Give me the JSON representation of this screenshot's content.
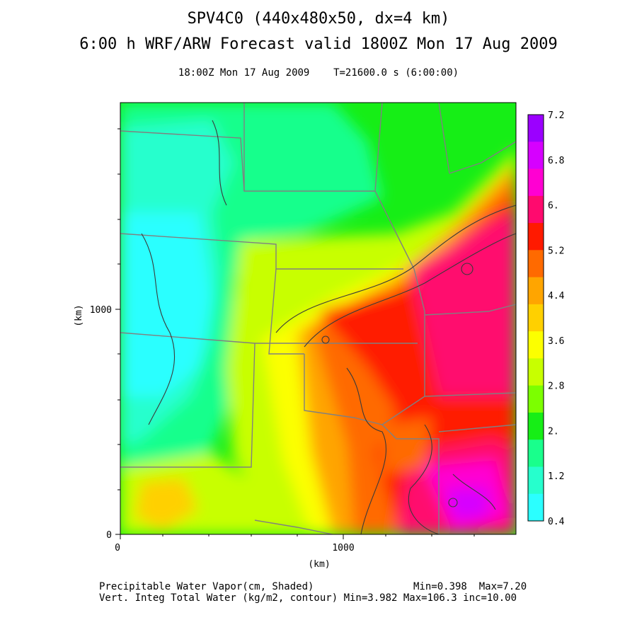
{
  "title_line1": "SPV4C0 (440x480x50, dx=4 km)",
  "title_line2": "6:00 h WRF/ARW Forecast valid 1800Z Mon 17 Aug 2009",
  "subtitle": "18:00Z Mon 17 Aug 2009    T=21600.0 s (6:00:00)",
  "axes": {
    "x_label": "(km)",
    "y_label": "(km)",
    "x_ticks": [
      "0",
      "1000"
    ],
    "y_ticks": [
      "0",
      "1000"
    ]
  },
  "colorbar": {
    "labels": [
      "7.2",
      "6.8",
      "6.",
      "5.2",
      "4.4",
      "3.6",
      "2.8",
      "2.",
      "1.2",
      "0.4"
    ],
    "colors": [
      "#9b00ff",
      "#d600ff",
      "#ff00d2",
      "#ff0a6e",
      "#ff1a00",
      "#ff6a00",
      "#ffa500",
      "#ffd000",
      "#fcff00",
      "#c8ff00",
      "#7cff00",
      "#16ee16",
      "#19ff8c",
      "#26ffcd",
      "#2bffff"
    ]
  },
  "footer": {
    "line1_left": "Precipitable Water Vapor(cm, Shaded)",
    "line1_right": "Min=0.398  Max=7.20",
    "line2": "Vert. Integ Total Water (kg/m2, contour) Min=3.982 Max=106.3 inc=10.00"
  }
}
